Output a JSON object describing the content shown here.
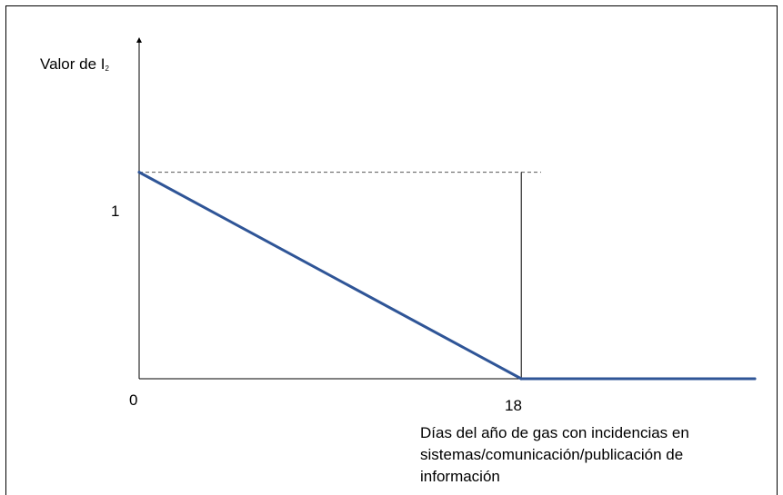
{
  "chart_data": {
    "type": "line",
    "ylabel_main": "Valor de I",
    "ylabel_sub": "2",
    "xlabel": "Días del año de gas con incidencias en sistemas/comunicación/publicación de información",
    "x_ticks": [
      "0",
      "18"
    ],
    "y_ticks": [
      "1"
    ],
    "series": [
      {
        "x": [
          0,
          18,
          29
        ],
        "y": [
          1,
          0,
          0
        ]
      }
    ],
    "reference_lines": {
      "horizontal_y": 1,
      "vertical_x": 18
    },
    "xlim": [
      0,
      29
    ],
    "ylim": [
      0,
      1.68
    ],
    "line_color": "#2f5597",
    "grid": false
  }
}
